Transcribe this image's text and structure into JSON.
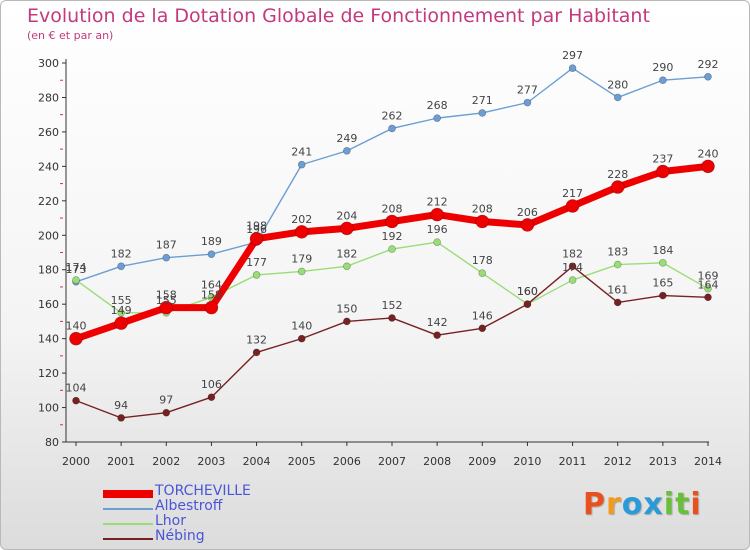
{
  "chart_data": {
    "type": "line",
    "title": "Evolution de la Dotation Globale de Fonctionnement par Habitant",
    "subtitle": "(en € et par an)",
    "xlabel": "",
    "ylabel": "",
    "ylim": [
      80,
      300
    ],
    "yticks": [
      80,
      100,
      120,
      140,
      160,
      180,
      200,
      220,
      240,
      260,
      280,
      300
    ],
    "x": [
      2000,
      2001,
      2002,
      2003,
      2004,
      2005,
      2006,
      2007,
      2008,
      2009,
      2010,
      2011,
      2012,
      2013,
      2014
    ],
    "series": [
      {
        "name": "TORCHEVILLE",
        "color": "#ee0000",
        "values": [
          140,
          149,
          158,
          158,
          198,
          202,
          204,
          208,
          212,
          208,
          206,
          217,
          228,
          237,
          240
        ]
      },
      {
        "name": "Albestroff",
        "color": "#6a9ed4",
        "values": [
          173,
          182,
          187,
          189,
          196,
          241,
          249,
          262,
          268,
          271,
          277,
          297,
          280,
          290,
          292
        ]
      },
      {
        "name": "Lhor",
        "color": "#99dd77",
        "values": [
          174,
          155,
          155,
          164,
          177,
          179,
          182,
          192,
          196,
          178,
          160,
          174,
          183,
          184,
          169
        ]
      },
      {
        "name": "Nébing",
        "color": "#772222",
        "values": [
          104,
          94,
          97,
          106,
          132,
          140,
          150,
          152,
          142,
          146,
          160,
          182,
          161,
          165,
          164
        ]
      }
    ],
    "legend_position": "bottom-left",
    "grid": false
  },
  "logo": {
    "text": "Proxiti",
    "colors": [
      "#e8501e",
      "#f39a1e",
      "#2a9ad8",
      "#2a9ad8",
      "#6abf3a",
      "#6abf3a",
      "#e8501e"
    ]
  }
}
